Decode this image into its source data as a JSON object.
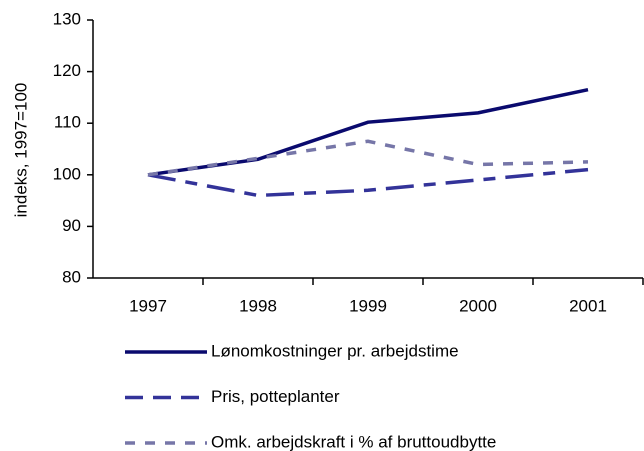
{
  "chart_data": {
    "type": "line",
    "y_label": "indeks,  1997=100",
    "categories": [
      "1997",
      "1998",
      "1999",
      "2000",
      "2001"
    ],
    "series": [
      {
        "name": "Lønomkostninger pr. arbejdstime",
        "color": "#0a0a6e",
        "values": [
          100,
          103,
          110.2,
          112,
          116.5
        ]
      },
      {
        "name": "Pris, potteplanter",
        "color": "#333399",
        "values": [
          100,
          96,
          97,
          99,
          101
        ]
      },
      {
        "name": "Omk. arbejdskraft i % af bruttoudbytte",
        "color": "#7676a8",
        "values": [
          100,
          103.2,
          106.5,
          102,
          102.5
        ]
      }
    ],
    "ylim": [
      80,
      130
    ],
    "yticks": [
      80,
      90,
      100,
      110,
      120,
      130
    ]
  }
}
